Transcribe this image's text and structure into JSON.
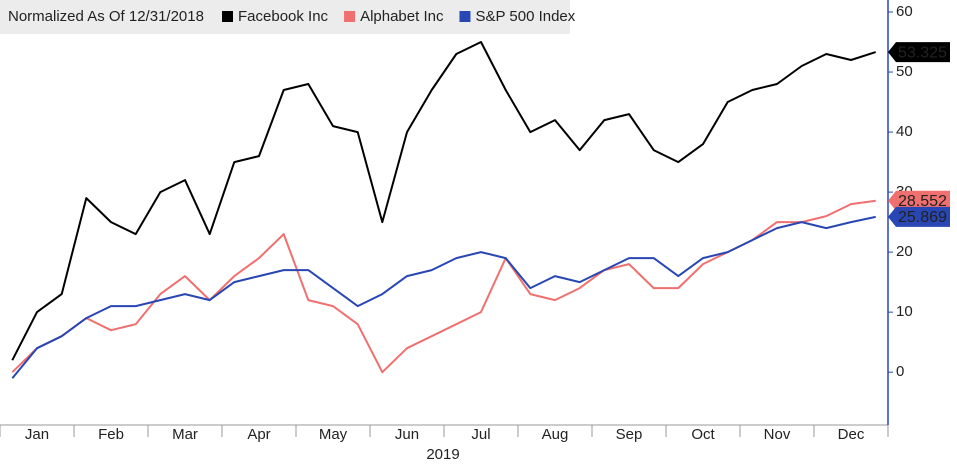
{
  "chart_data": {
    "type": "line",
    "legend_title": "Normalized As Of 12/31/2018",
    "xlabel": "2019",
    "categories": [
      null,
      "Jan",
      null,
      null,
      "Feb",
      null,
      null,
      "Mar",
      null,
      null,
      "Apr",
      null,
      null,
      "May",
      null,
      null,
      "Jun",
      null,
      null,
      "Jul",
      null,
      null,
      "Aug",
      null,
      null,
      "Sep",
      null,
      null,
      "Oct",
      null,
      null,
      "Nov",
      null,
      null,
      "Dec",
      null
    ],
    "series": [
      {
        "name": "Facebook Inc",
        "color": "#000000",
        "tag_text": "#ffffff",
        "values": [
          2,
          10,
          13,
          29,
          25,
          23,
          30,
          32,
          23,
          35,
          36,
          47,
          48,
          41,
          40,
          25,
          40,
          47,
          53,
          55,
          47,
          40,
          42,
          37,
          42,
          43,
          37,
          35,
          38,
          45,
          47,
          48,
          51,
          53,
          52,
          53.325
        ]
      },
      {
        "name": "Alphabet Inc",
        "color": "#f07070",
        "tag_text": "#000000",
        "values": [
          0,
          4,
          6,
          9,
          7,
          8,
          13,
          16,
          12,
          16,
          19,
          23,
          12,
          11,
          8,
          0,
          4,
          6,
          8,
          10,
          19,
          13,
          12,
          14,
          17,
          18,
          14,
          14,
          18,
          20,
          22,
          25,
          25,
          26,
          28,
          28.552
        ]
      },
      {
        "name": "S&P 500 Index",
        "color": "#2846b4",
        "tag_text": "#ffffff",
        "values": [
          -1,
          4,
          6,
          9,
          11,
          11,
          12,
          13,
          12,
          15,
          16,
          17,
          17,
          14,
          11,
          13,
          16,
          17,
          19,
          20,
          19,
          14,
          16,
          15,
          17,
          19,
          19,
          16,
          19,
          20,
          22,
          24,
          25,
          24,
          25,
          25.869
        ]
      }
    ],
    "ylim": [
      -8.8,
      62
    ],
    "yticks": [
      0,
      10,
      20,
      30,
      40,
      50,
      60
    ],
    "axis_color": "#2846b4"
  }
}
